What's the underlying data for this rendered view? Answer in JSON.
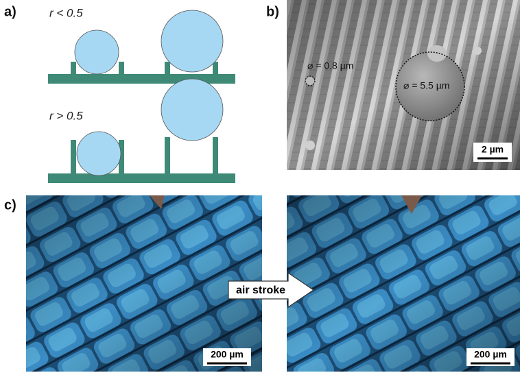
{
  "panels": {
    "a": {
      "label": "a)",
      "top_condition": "r < 0.5",
      "bottom_condition": "r > 0.5"
    },
    "b": {
      "label": "b)",
      "small_droplet": "⌀ = 0.8 µm",
      "large_droplet": "⌀ = 5.5 µm",
      "scale_bar": "2 µm"
    },
    "c": {
      "label": "c)",
      "left_scale_bar": "200 µm",
      "arrow": "air stroke",
      "right_scale_bar": "200 µm"
    }
  }
}
